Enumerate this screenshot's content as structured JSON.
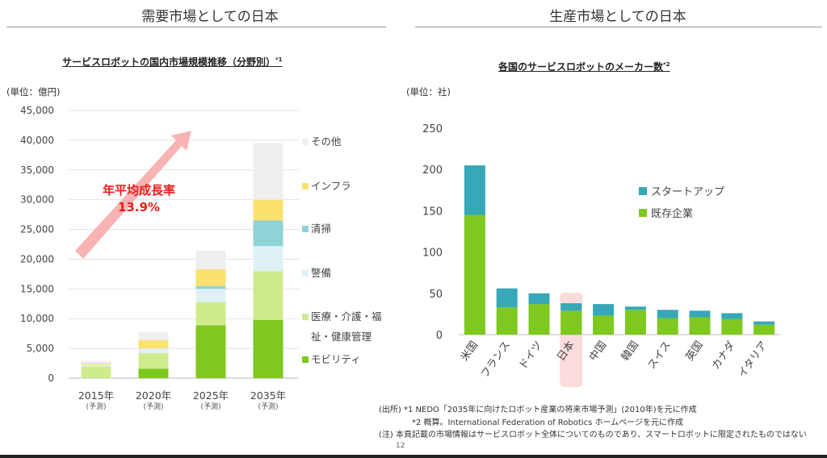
{
  "sections": {
    "left_title": "需要市場としての日本",
    "right_title": "生産市場としての日本"
  },
  "left_chart": {
    "title": "サービスロボットの国内市場規模推移（分野別）",
    "title_note": "*1",
    "unit": "(単位：億円)",
    "growth_label": "年平均成長率",
    "growth_value": "13.9%",
    "colors": {
      "mobility": "#7ec81f",
      "medical": "#cfeb8e",
      "security": "#dff1f5",
      "cleaning": "#8fd3d8",
      "infra": "#fbe16e",
      "other": "#efefef"
    }
  },
  "right_chart": {
    "title": "各国のサービスロボットのメーカー数",
    "title_note": "*2",
    "unit": "(単位：社)",
    "colors": {
      "startup": "#36a8b8",
      "existing": "#7ec81f"
    }
  },
  "chart_data": [
    {
      "type": "bar",
      "stacked": true,
      "title": "サービスロボットの国内市場規模推移（分野別）",
      "ylabel": "(単位：億円)",
      "ylim": [
        0,
        45000
      ],
      "yticks": [
        "0",
        "5,000",
        "10,000",
        "15,000",
        "20,000",
        "25,000",
        "30,000",
        "35,000",
        "40,000",
        "45,000"
      ],
      "categories": [
        "2015年",
        "2020年",
        "2025年",
        "2035年"
      ],
      "category_notes": [
        "(予測)",
        "(予測)",
        "(予測)",
        "(予測)"
      ],
      "series": [
        {
          "name": "モビリティ",
          "values": [
            0,
            1600,
            8900,
            9800
          ]
        },
        {
          "name": "医療・介護・福祉・健康管理",
          "values": [
            2000,
            2600,
            3900,
            8200
          ]
        },
        {
          "name": "警備",
          "values": [
            300,
            800,
            2200,
            4200
          ]
        },
        {
          "name": "清掃",
          "values": [
            0,
            0,
            500,
            4300
          ]
        },
        {
          "name": "インフラ",
          "values": [
            200,
            1400,
            2800,
            3500
          ]
        },
        {
          "name": "その他",
          "values": [
            400,
            1400,
            3100,
            9500
          ]
        }
      ],
      "legend_position": "right"
    },
    {
      "type": "bar",
      "stacked": true,
      "title": "各国のサービスロボットのメーカー数",
      "ylabel": "(単位：社)",
      "ylim": [
        0,
        250
      ],
      "yticks": [
        "0",
        "50",
        "100",
        "150",
        "200",
        "250"
      ],
      "categories": [
        "米国",
        "フランス",
        "ドイツ",
        "日本",
        "中国",
        "韓国",
        "スイス",
        "英国",
        "カナダ",
        "イタリア"
      ],
      "highlight_category": "日本",
      "series": [
        {
          "name": "既存企業",
          "values": [
            145,
            33,
            37,
            29,
            23,
            30,
            20,
            21,
            19,
            12
          ]
        },
        {
          "name": "スタートアップ",
          "values": [
            60,
            23,
            13,
            9,
            14,
            4,
            10,
            8,
            7,
            4
          ]
        }
      ],
      "legend_position": "right"
    }
  ],
  "footnotes": {
    "line1": "(出所)  *1 NEDO「2035年に向けたロボット産業の将来市場予測」(2010年)を元に作成",
    "line2": "*2 概算。International Federation of Robotics ホームページを元に作成",
    "line3": "(注)  本頁記載の市場情報はサービスロボット全体についてのものであり、スマートロボットに限定されたものではない"
  },
  "page_number": "12"
}
